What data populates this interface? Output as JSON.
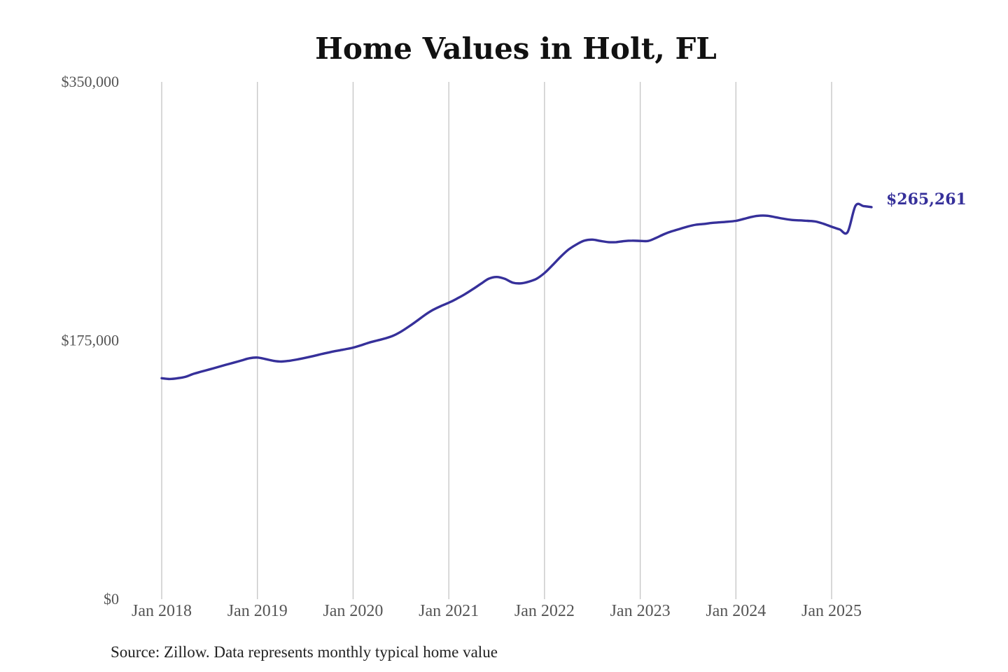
{
  "chart_data": {
    "type": "line",
    "title": "Home Values in Holt, FL",
    "y_ticks": [
      "$350,000",
      "$175,000",
      "$0"
    ],
    "y_tick_values": [
      350000,
      175000,
      0
    ],
    "ylim": [
      0,
      350000
    ],
    "x_ticks": [
      "Jan 2018",
      "Jan 2019",
      "Jan 2020",
      "Jan 2021",
      "Jan 2022",
      "Jan 2023",
      "Jan 2024",
      "Jan 2025"
    ],
    "x_tick_dates": [
      "2018-01",
      "2019-01",
      "2020-01",
      "2021-01",
      "2022-01",
      "2023-01",
      "2024-01",
      "2025-01"
    ],
    "xlim": [
      "2018-01",
      "2025-06"
    ],
    "grid": "vertical",
    "legend": "none",
    "color": "#36309a",
    "end_label": "$265,261",
    "source_note": "Source: Zillow. Data represents monthly typical home value",
    "series": [
      {
        "x": [
          "2018-01",
          "2018-02",
          "2018-03",
          "2018-04",
          "2018-05",
          "2018-06",
          "2018-07",
          "2018-08",
          "2018-09",
          "2018-10",
          "2018-11",
          "2018-12",
          "2019-01",
          "2019-02",
          "2019-03",
          "2019-04",
          "2019-05",
          "2019-06",
          "2019-07",
          "2019-08",
          "2019-09",
          "2019-10",
          "2019-11",
          "2019-12",
          "2020-01",
          "2020-02",
          "2020-03",
          "2020-04",
          "2020-05",
          "2020-06",
          "2020-07",
          "2020-08",
          "2020-09",
          "2020-10",
          "2020-11",
          "2020-12",
          "2021-01",
          "2021-02",
          "2021-03",
          "2021-04",
          "2021-05",
          "2021-06",
          "2021-07",
          "2021-08",
          "2021-09",
          "2021-10",
          "2021-11",
          "2021-12",
          "2022-01",
          "2022-02",
          "2022-03",
          "2022-04",
          "2022-05",
          "2022-06",
          "2022-07",
          "2022-08",
          "2022-09",
          "2022-10",
          "2022-11",
          "2022-12",
          "2023-01",
          "2023-02",
          "2023-03",
          "2023-04",
          "2023-05",
          "2023-06",
          "2023-07",
          "2023-08",
          "2023-09",
          "2023-10",
          "2023-11",
          "2023-12",
          "2024-01",
          "2024-02",
          "2024-03",
          "2024-04",
          "2024-05",
          "2024-06",
          "2024-07",
          "2024-08",
          "2024-09",
          "2024-10",
          "2024-11",
          "2024-12",
          "2025-01",
          "2025-02",
          "2025-03",
          "2025-04",
          "2025-05",
          "2025-06"
        ],
        "values": [
          149500,
          149000,
          149500,
          150500,
          152500,
          154000,
          155500,
          157000,
          158500,
          160000,
          161500,
          163000,
          163500,
          162500,
          161300,
          160800,
          161300,
          162200,
          163300,
          164500,
          165800,
          167000,
          168100,
          169100,
          170200,
          171800,
          173600,
          175000,
          176400,
          178200,
          181000,
          184500,
          188300,
          192300,
          195700,
          198300,
          200600,
          203300,
          206300,
          209700,
          213300,
          216800,
          218000,
          216800,
          214200,
          213700,
          214800,
          216800,
          220700,
          226000,
          231600,
          236500,
          240000,
          242600,
          243300,
          242400,
          241600,
          241600,
          242300,
          242600,
          242400,
          242400,
          244500,
          247000,
          249000,
          250600,
          252200,
          253400,
          253900,
          254600,
          255000,
          255400,
          256000,
          257300,
          258700,
          259500,
          259400,
          258400,
          257400,
          256600,
          256300,
          256000,
          255500,
          254000,
          252000,
          250200,
          248300,
          266200,
          266000,
          265261
        ]
      }
    ]
  }
}
